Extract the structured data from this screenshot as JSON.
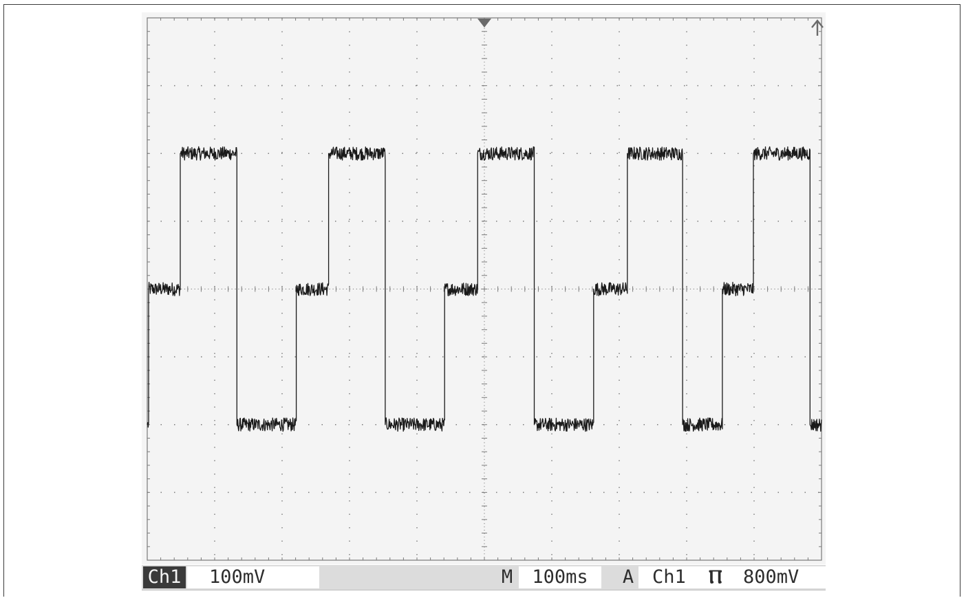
{
  "status_bar": {
    "channel": "Ch1",
    "volts_per_div": "100mV",
    "timebase_label": "M",
    "timebase_value": "100ms",
    "trigger_label": "A",
    "trigger_source": "Ch1",
    "trigger_slope": "Ⲡ",
    "trigger_level": "800mV"
  },
  "colors": {
    "trace": "#1a1a1a",
    "grid": "#7a7a7a",
    "screen": "#f4f4f4"
  },
  "chart_data": {
    "type": "line",
    "title": "",
    "xlabel": "",
    "ylabel": "",
    "x_unit": "ms",
    "y_unit": "mV",
    "xlim": [
      0,
      1000
    ],
    "ylim": [
      -400,
      400
    ],
    "grid": true,
    "x_divisions": 10,
    "y_divisions": 8,
    "noise_amplitude_mV": 10,
    "series": [
      {
        "x": [
          0,
          2,
          2,
          49,
          49,
          133,
          133,
          221,
          221,
          269,
          269,
          353,
          353,
          441,
          441,
          490,
          490,
          574,
          574,
          662,
          662,
          712,
          712,
          794,
          794,
          853,
          853,
          899,
          899,
          983,
          983,
          1000
        ],
        "y": [
          -200,
          -200,
          0,
          0,
          200,
          200,
          -200,
          -200,
          0,
          0,
          200,
          200,
          -200,
          -200,
          0,
          0,
          200,
          200,
          -200,
          -200,
          0,
          0,
          200,
          200,
          -200,
          -200,
          0,
          0,
          200,
          200,
          -200,
          -200
        ]
      }
    ]
  }
}
